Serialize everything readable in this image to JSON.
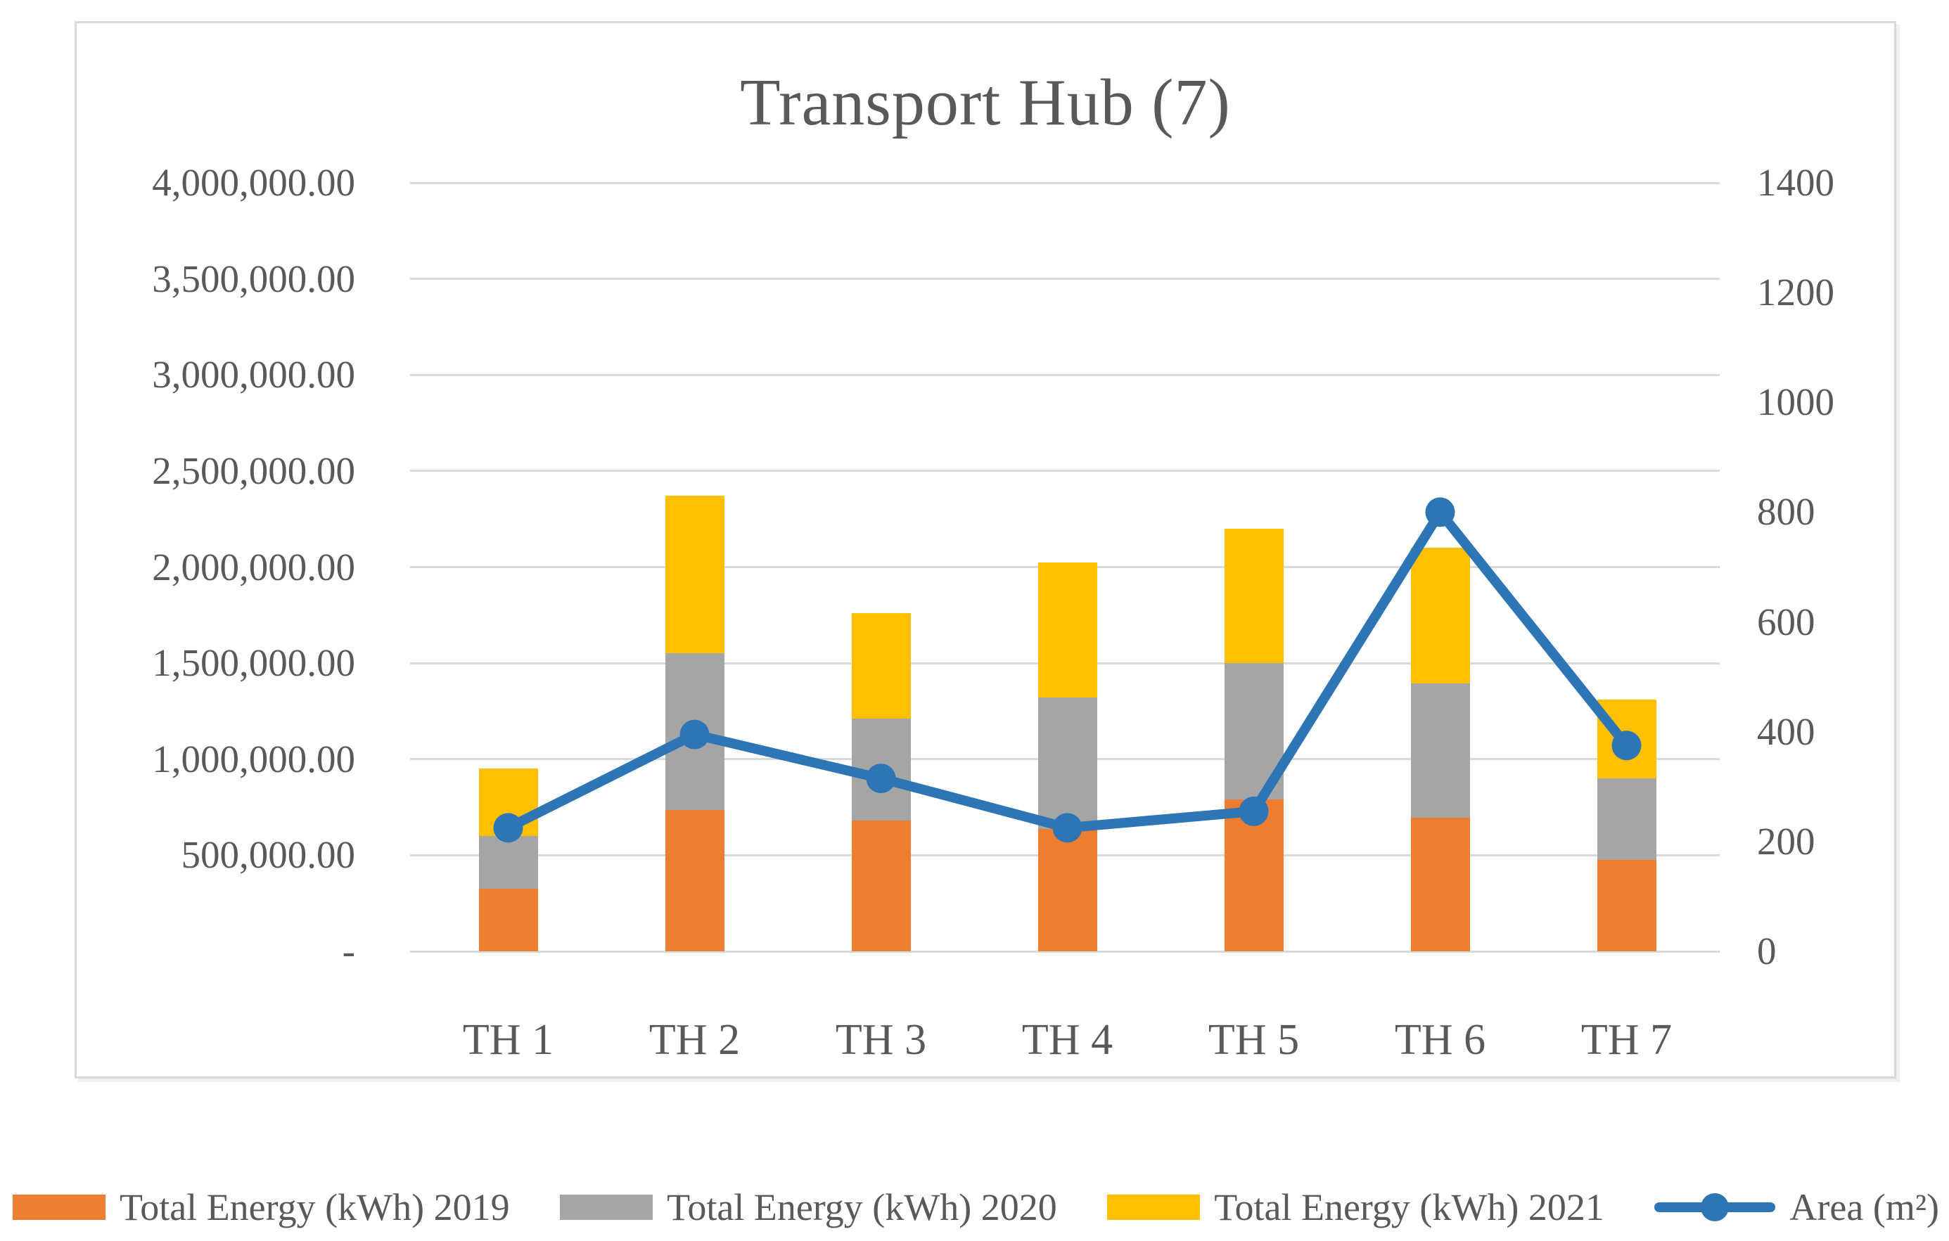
{
  "title": "Transport Hub (7)",
  "chart_data": {
    "type": "combo-stacked-bar-line",
    "title": "Transport Hub (7)",
    "categories": [
      "TH 1",
      "TH 2",
      "TH 3",
      "TH 4",
      "TH 5",
      "TH 6",
      "TH 7"
    ],
    "series": [
      {
        "name": "Total Energy (kWh) 2019",
        "type": "bar",
        "color": "#ED7D31",
        "values": [
          325000,
          735000,
          680000,
          635000,
          790000,
          695000,
          475000
        ]
      },
      {
        "name": "Total Energy (kWh) 2020",
        "type": "bar",
        "color": "#A5A5A5",
        "values": [
          275000,
          815000,
          530000,
          685000,
          710000,
          700000,
          425000
        ]
      },
      {
        "name": "Total Energy (kWh) 2021",
        "type": "bar",
        "color": "#FFC000",
        "values": [
          350000,
          820000,
          550000,
          705000,
          700000,
          705000,
          410000
        ]
      },
      {
        "name": "Area (m²)",
        "type": "line",
        "axis": "right",
        "color": "#2E75B6",
        "values": [
          225,
          395,
          315,
          225,
          255,
          800,
          375
        ]
      }
    ],
    "left_axis": {
      "min": 0,
      "max": 4000000,
      "ticks": [
        "4,000,000.00",
        "3,500,000.00",
        "3,000,000.00",
        "2,500,000.00",
        "2,000,000.00",
        "1,500,000.00",
        "1,000,000.00",
        "500,000.00",
        "-"
      ]
    },
    "right_axis": {
      "min": 0,
      "max": 1400,
      "ticks": [
        "1400",
        "1200",
        "1000",
        "800",
        "600",
        "400",
        "200",
        "0"
      ]
    },
    "grid": true,
    "legend_position": "bottom",
    "colors": {
      "gridline": "#D9D9D9",
      "text": "#595959",
      "bar_2019": "#ED7D31",
      "bar_2020": "#A5A5A5",
      "bar_2021": "#FFC000",
      "line_area": "#2E75B6"
    }
  }
}
